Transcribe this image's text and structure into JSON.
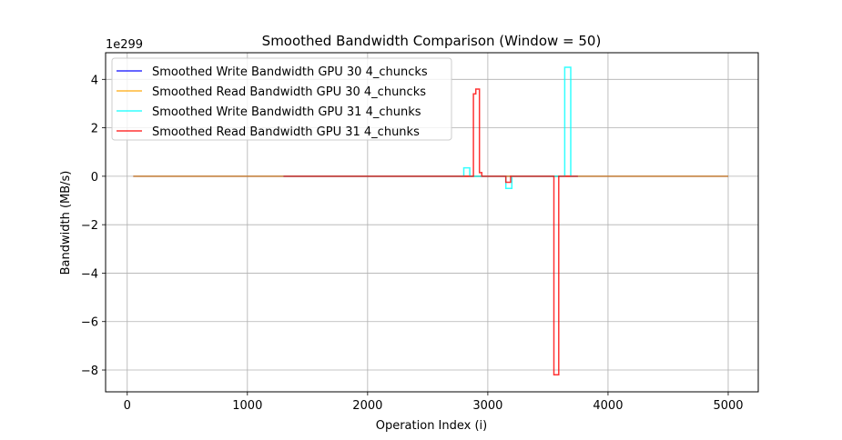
{
  "chart_data": {
    "type": "line",
    "title": "Smoothed Bandwidth Comparison (Window = 50)",
    "xlabel": "Operation Index (i)",
    "ylabel": "Bandwidth (MB/s)",
    "y_scale_label": "1e299",
    "xlim": [
      -180,
      5250
    ],
    "ylim": [
      -8.9,
      5.1
    ],
    "x_ticks": [
      0,
      1000,
      2000,
      3000,
      4000,
      5000
    ],
    "x_tick_labels": [
      "0",
      "1000",
      "2000",
      "3000",
      "4000",
      "5000"
    ],
    "y_ticks": [
      -8,
      -6,
      -4,
      -2,
      0,
      2,
      4
    ],
    "y_tick_labels": [
      "−8",
      "−6",
      "−4",
      "−2",
      "0",
      "2",
      "4"
    ],
    "grid": true,
    "legend_position": "top-left",
    "series": [
      {
        "name": "Smoothed Write Bandwidth GPU 30 4_chuncks",
        "color": "#0000ff",
        "points": [
          [
            50,
            0
          ],
          [
            5000,
            0
          ]
        ]
      },
      {
        "name": "Smoothed Read Bandwidth GPU 30 4_chuncks",
        "color": "#ffa500",
        "points": [
          [
            50,
            0
          ],
          [
            5000,
            0
          ]
        ]
      },
      {
        "name": "Smoothed Write Bandwidth GPU 31 4_chunks",
        "color": "#00ffff",
        "points": [
          [
            1300,
            0
          ],
          [
            2800,
            0
          ],
          [
            2800,
            0.35
          ],
          [
            2850,
            0.35
          ],
          [
            2850,
            0
          ],
          [
            3150,
            0
          ],
          [
            3150,
            -0.5
          ],
          [
            3200,
            -0.5
          ],
          [
            3200,
            0
          ],
          [
            3640,
            0
          ],
          [
            3640,
            4.5
          ],
          [
            3690,
            4.5
          ],
          [
            3690,
            0
          ],
          [
            3750,
            0
          ]
        ]
      },
      {
        "name": "Smoothed Read Bandwidth GPU 31 4_chunks",
        "color": "#ff0000",
        "points": [
          [
            1300,
            0
          ],
          [
            2880,
            0
          ],
          [
            2880,
            3.4
          ],
          [
            2900,
            3.4
          ],
          [
            2900,
            3.6
          ],
          [
            2930,
            3.6
          ],
          [
            2930,
            0.15
          ],
          [
            2950,
            0.15
          ],
          [
            2950,
            0
          ],
          [
            3150,
            0
          ],
          [
            3150,
            -0.25
          ],
          [
            3190,
            -0.25
          ],
          [
            3190,
            0
          ],
          [
            3550,
            0
          ],
          [
            3550,
            -8.2
          ],
          [
            3590,
            -8.2
          ],
          [
            3590,
            0
          ],
          [
            3750,
            0
          ]
        ]
      }
    ]
  }
}
